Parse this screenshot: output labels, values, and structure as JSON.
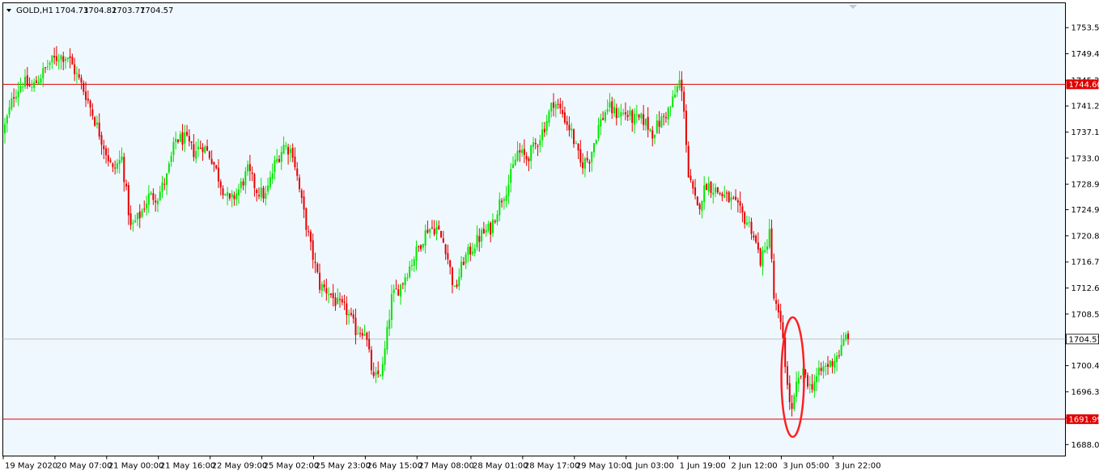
{
  "window": {
    "symbol": "GOLD,H1",
    "ohlc": [
      "1704.73",
      "1704.82",
      "1703.77",
      "1704.57"
    ]
  },
  "colors": {
    "background": "#F0F8FF",
    "frame": "#000000",
    "bull": "#00E600",
    "bear": "#E60000",
    "level": "#E00000",
    "current_line": "#C0C0C0",
    "ellipse": "#FF2020"
  },
  "chart_data": {
    "type": "candlestick",
    "symbol": "GOLD",
    "timeframe": "H1",
    "ylim": [
      1686.2,
      1757.4
    ],
    "y_ticks": [
      "1753.50",
      "1749.40",
      "1745.20",
      "1741.20",
      "1737.10",
      "1733.00",
      "1728.90",
      "1724.90",
      "1720.80",
      "1716.70",
      "1712.60",
      "1708.50",
      "1704.50",
      "1700.40",
      "1696.30",
      "1692.20",
      "1688.00"
    ],
    "x_ticks": [
      "19 May 2020",
      "20 May 07:00",
      "21 May 00:00",
      "21 May 16:00",
      "22 May 09:00",
      "25 May 02:00",
      "25 May 23:00",
      "26 May 15:00",
      "27 May 08:00",
      "28 May 01:00",
      "28 May 17:00",
      "29 May 10:00",
      "1 Jun 03:00",
      "1 Jun 19:00",
      "2 Jun 12:00",
      "3 Jun 05:00",
      "3 Jun 22:00"
    ],
    "levels": [
      {
        "price": 1744.6,
        "label": "1744.60"
      },
      {
        "price": 1691.99,
        "label": "1691.99"
      }
    ],
    "current_price": {
      "price": 1704.57,
      "label": "1704.57"
    },
    "annotation": {
      "type": "ellipse",
      "note": "3 Jun 05:00 low"
    },
    "anchors": [
      [
        0,
        1738
      ],
      [
        4,
        1743
      ],
      [
        8,
        1745
      ],
      [
        12,
        1744
      ],
      [
        16,
        1746
      ],
      [
        20,
        1748
      ],
      [
        24,
        1749
      ],
      [
        28,
        1749
      ],
      [
        32,
        1746
      ],
      [
        36,
        1743
      ],
      [
        40,
        1739
      ],
      [
        44,
        1735
      ],
      [
        48,
        1731
      ],
      [
        52,
        1733
      ],
      [
        56,
        1722
      ],
      [
        60,
        1724
      ],
      [
        64,
        1727
      ],
      [
        68,
        1727
      ],
      [
        72,
        1730
      ],
      [
        76,
        1736
      ],
      [
        80,
        1736
      ],
      [
        84,
        1734
      ],
      [
        88,
        1735
      ],
      [
        92,
        1733
      ],
      [
        96,
        1729
      ],
      [
        100,
        1726
      ],
      [
        104,
        1728
      ],
      [
        108,
        1731
      ],
      [
        112,
        1728
      ],
      [
        116,
        1727
      ],
      [
        120,
        1732
      ],
      [
        124,
        1735
      ],
      [
        128,
        1734
      ],
      [
        132,
        1726
      ],
      [
        136,
        1719
      ],
      [
        140,
        1713
      ],
      [
        144,
        1712
      ],
      [
        148,
        1710
      ],
      [
        152,
        1709
      ],
      [
        156,
        1706
      ],
      [
        160,
        1706
      ],
      [
        164,
        1698
      ],
      [
        168,
        1700
      ],
      [
        172,
        1711
      ],
      [
        176,
        1713
      ],
      [
        180,
        1716
      ],
      [
        184,
        1719
      ],
      [
        188,
        1722
      ],
      [
        192,
        1722
      ],
      [
        196,
        1719
      ],
      [
        200,
        1712
      ],
      [
        204,
        1717
      ],
      [
        208,
        1719
      ],
      [
        212,
        1721
      ],
      [
        216,
        1722
      ],
      [
        220,
        1726
      ],
      [
        224,
        1729
      ],
      [
        228,
        1734
      ],
      [
        232,
        1733
      ],
      [
        236,
        1735
      ],
      [
        240,
        1738
      ],
      [
        244,
        1742
      ],
      [
        248,
        1740
      ],
      [
        252,
        1737
      ],
      [
        256,
        1732
      ],
      [
        260,
        1733
      ],
      [
        264,
        1738
      ],
      [
        268,
        1741
      ],
      [
        272,
        1740
      ],
      [
        276,
        1740
      ],
      [
        280,
        1739
      ],
      [
        284,
        1739
      ],
      [
        288,
        1737
      ],
      [
        292,
        1739
      ],
      [
        296,
        1741
      ],
      [
        300,
        1745
      ],
      [
        302,
        1741
      ],
      [
        304,
        1730
      ],
      [
        308,
        1725
      ],
      [
        312,
        1729
      ],
      [
        316,
        1728
      ],
      [
        320,
        1727
      ],
      [
        324,
        1726
      ],
      [
        328,
        1724
      ],
      [
        332,
        1722
      ],
      [
        336,
        1717
      ],
      [
        338,
        1718
      ],
      [
        340,
        1722
      ],
      [
        342,
        1711
      ],
      [
        344,
        1708
      ],
      [
        346,
        1705
      ],
      [
        348,
        1697
      ],
      [
        350,
        1693
      ],
      [
        352,
        1697
      ],
      [
        354,
        1699
      ],
      [
        356,
        1699
      ],
      [
        358,
        1697
      ],
      [
        360,
        1698
      ],
      [
        364,
        1700
      ],
      [
        368,
        1701
      ],
      [
        372,
        1703
      ],
      [
        374,
        1705
      ],
      [
        375,
        1704.57
      ]
    ]
  }
}
